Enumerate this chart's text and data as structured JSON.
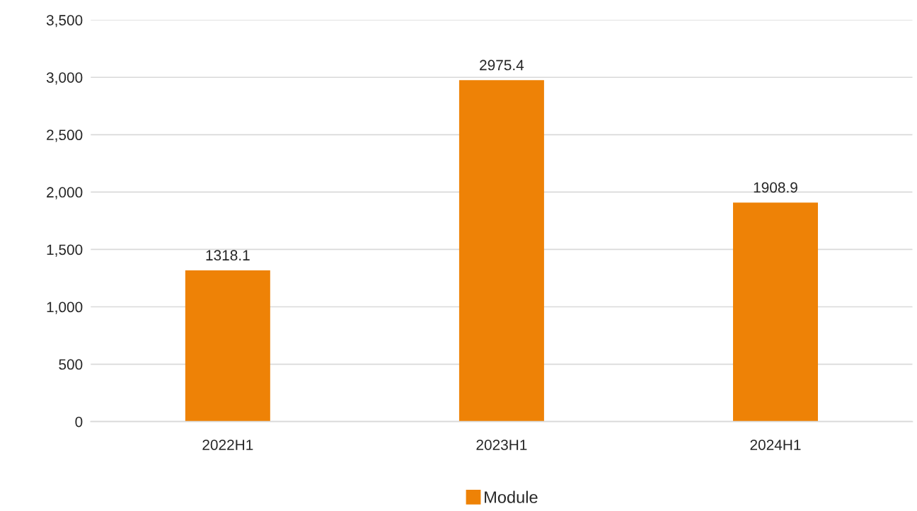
{
  "chart_data": {
    "type": "bar",
    "categories": [
      "2022H1",
      "2023H1",
      "2024H1"
    ],
    "series": [
      {
        "name": "Module",
        "color": "#ee8206",
        "values": [
          1318.1,
          2975.4,
          1908.9
        ]
      }
    ],
    "ylim": [
      0,
      3500
    ],
    "yticks": [
      0,
      500,
      {
        "value": 1000,
        "label": "1,000"
      },
      {
        "value": 1500,
        "label": "1,500"
      },
      {
        "value": 2000,
        "label": "2,000"
      },
      {
        "value": 2500,
        "label": "2,500"
      },
      {
        "value": 3000,
        "label": "3,000"
      },
      {
        "value": 3500,
        "label": "3,500"
      }
    ],
    "grid": "y",
    "legend": "bottom",
    "data_labels": true
  }
}
